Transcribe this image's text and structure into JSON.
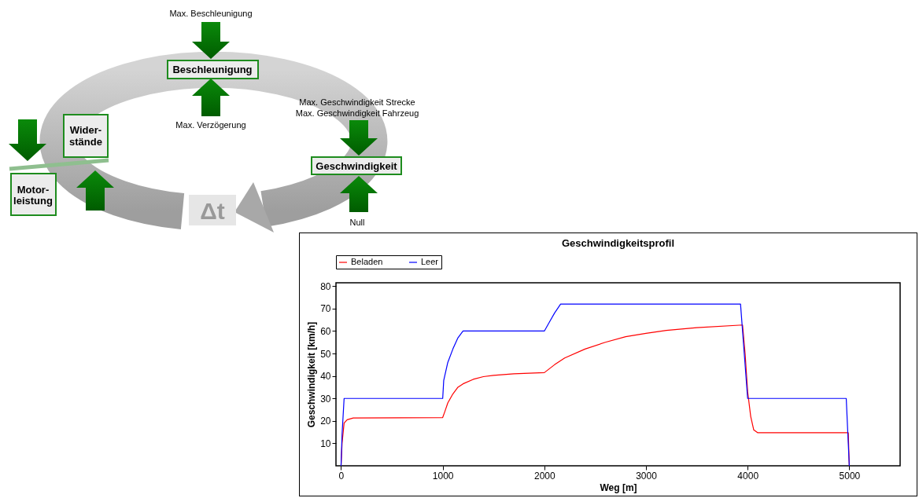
{
  "chart_data": [
    {
      "type": "other",
      "annotations": [
        "Max. Beschleunigung",
        "Beschleunigung",
        "Max. Verzögerung",
        "Max. Geschwindigkeit Strecke",
        "Max. Geschwindigkeit Fahrzeug",
        "Geschwindigkeit",
        "Null",
        "Wider-\nstände",
        "Motor-\nleistung",
        "Δt"
      ]
    },
    {
      "type": "line",
      "title": "Geschwindigkeitsprofil",
      "xlabel": "Weg [m]",
      "ylabel": "Geschwindigkeit [km/h]",
      "series": [
        {
          "name": "Beladen",
          "color": "#ff0000",
          "x": [
            0,
            10,
            30,
            60,
            120,
            1000,
            1020,
            1050,
            1100,
            1150,
            1200,
            1300,
            1400,
            1500,
            1700,
            2000,
            2100,
            2200,
            2400,
            2600,
            2800,
            3000,
            3200,
            3500,
            3950,
            3975,
            4000,
            4030,
            4060,
            4100,
            4990,
            5000
          ],
          "values": [
            0,
            10,
            19,
            20.5,
            21.3,
            21.5,
            24,
            28,
            32,
            35,
            36.5,
            38.5,
            39.7,
            40.3,
            41,
            41.5,
            45,
            48,
            52,
            55,
            57.5,
            59,
            60.3,
            61.5,
            62.7,
            50,
            33,
            22,
            16,
            14.7,
            14.7,
            0
          ]
        },
        {
          "name": "Leer",
          "color": "#0000ff",
          "x": [
            0,
            10,
            30,
            1000,
            1010,
            1050,
            1100,
            1150,
            1200,
            2000,
            2050,
            2100,
            2160,
            3930,
            4000,
            4970,
            5000
          ],
          "values": [
            0,
            14,
            30,
            30,
            38,
            46,
            52,
            57,
            60,
            60,
            64,
            68,
            72,
            72,
            30,
            30,
            0
          ]
        }
      ],
      "xlim": [
        -50,
        5500
      ],
      "ylim": [
        0,
        81.5
      ],
      "xticks": [
        0,
        1000,
        2000,
        3000,
        4000,
        5000
      ],
      "yticks": [
        10,
        20,
        30,
        40,
        50,
        60,
        70,
        80
      ],
      "grid": false,
      "legend": "top left"
    }
  ]
}
